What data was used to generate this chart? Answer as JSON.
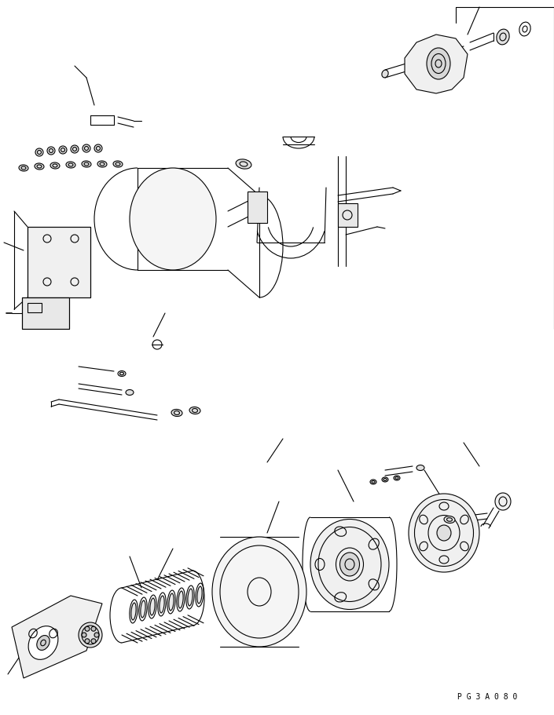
{
  "background_color": "#ffffff",
  "line_color": "#000000",
  "page_code": "P G 3 A 0 8 0",
  "fig_width": 7.05,
  "fig_height": 9.12,
  "dpi": 100
}
